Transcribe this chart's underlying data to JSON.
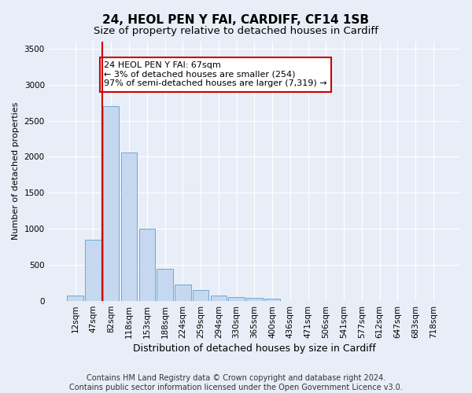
{
  "title": "24, HEOL PEN Y FAI, CARDIFF, CF14 1SB",
  "subtitle": "Size of property relative to detached houses in Cardiff",
  "xlabel": "Distribution of detached houses by size in Cardiff",
  "ylabel": "Number of detached properties",
  "categories": [
    "12sqm",
    "47sqm",
    "82sqm",
    "118sqm",
    "153sqm",
    "188sqm",
    "224sqm",
    "259sqm",
    "294sqm",
    "330sqm",
    "365sqm",
    "400sqm",
    "436sqm",
    "471sqm",
    "506sqm",
    "541sqm",
    "577sqm",
    "612sqm",
    "647sqm",
    "683sqm",
    "718sqm"
  ],
  "bar_values": [
    75,
    850,
    2700,
    2060,
    1000,
    450,
    225,
    150,
    80,
    60,
    45,
    30,
    5,
    5,
    2,
    1,
    0,
    0,
    0,
    0,
    0
  ],
  "bar_color": "#c5d8f0",
  "bar_edge_color": "#6aaad4",
  "vline_x": 1.5,
  "vline_color": "#cc0000",
  "annotation_text": "24 HEOL PEN Y FAI: 67sqm\n← 3% of detached houses are smaller (254)\n97% of semi-detached houses are larger (7,319) →",
  "annotation_box_facecolor": "#ffffff",
  "annotation_box_edgecolor": "#cc0000",
  "ylim": [
    0,
    3600
  ],
  "yticks": [
    0,
    500,
    1000,
    1500,
    2000,
    2500,
    3000,
    3500
  ],
  "background_color": "#e8eef7",
  "grid_color": "#ffffff",
  "footer1": "Contains HM Land Registry data © Crown copyright and database right 2024.",
  "footer2": "Contains public sector information licensed under the Open Government Licence v3.0.",
  "title_fontsize": 11,
  "subtitle_fontsize": 9.5,
  "xlabel_fontsize": 9,
  "ylabel_fontsize": 8,
  "tick_fontsize": 7.5,
  "annotation_fontsize": 8,
  "footer_fontsize": 7
}
